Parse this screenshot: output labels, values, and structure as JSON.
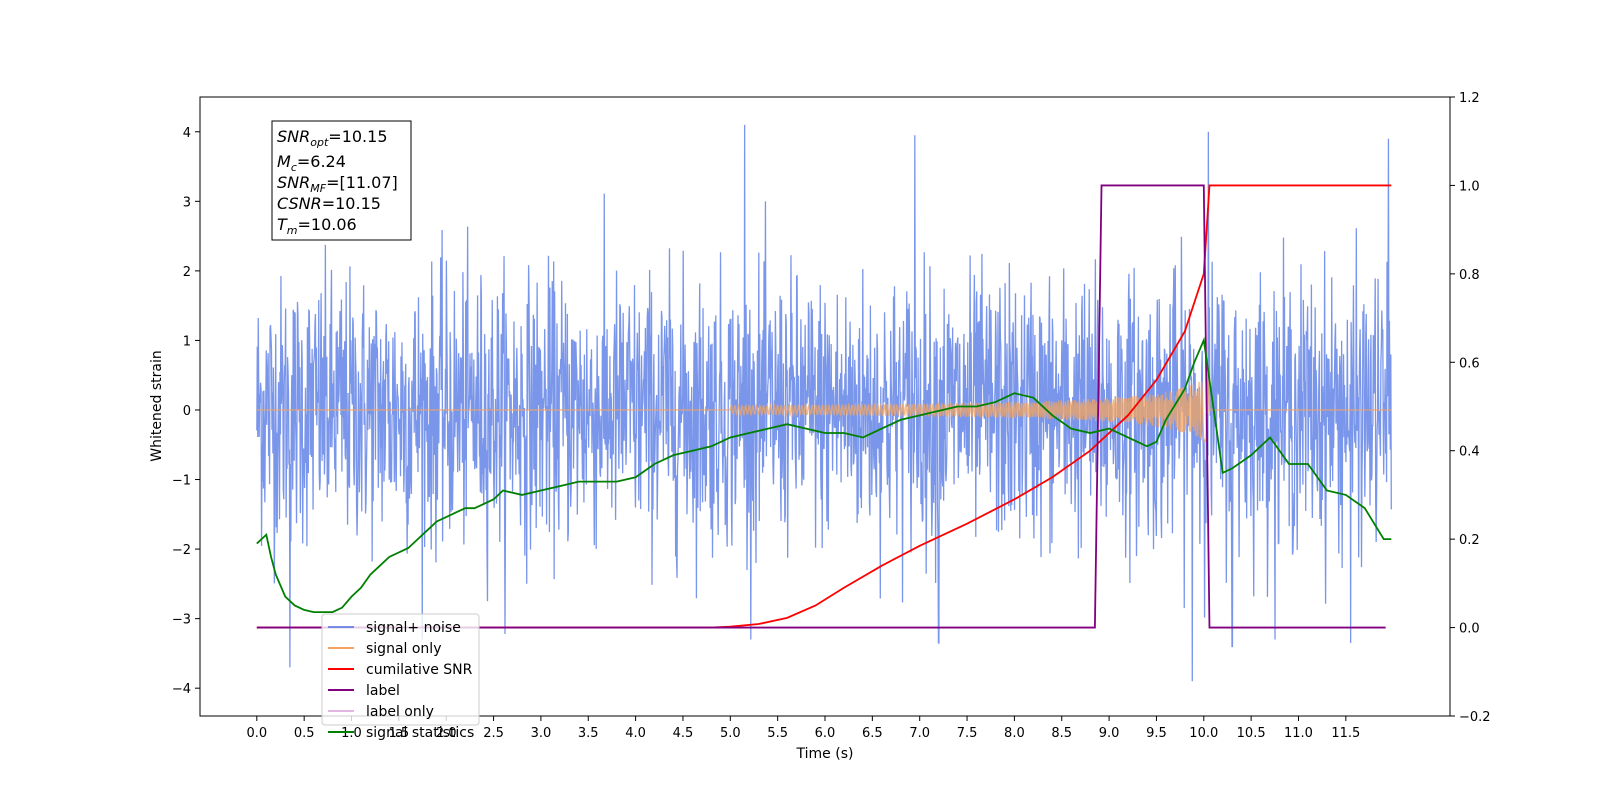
{
  "chart_data": {
    "type": "line",
    "xlabel": "Time (s)",
    "ylabel": "Whitened strain",
    "xlim": [
      -0.6,
      12.6
    ],
    "ylim": [
      -4.4,
      4.5
    ],
    "ylim_right": [
      -0.2,
      1.2
    ],
    "x_ticks": [
      "0.0",
      "0.5",
      "1.0",
      "1.5",
      "2.0",
      "2.5",
      "3.0",
      "3.5",
      "4.0",
      "4.5",
      "5.0",
      "5.5",
      "6.0",
      "6.5",
      "7.0",
      "7.5",
      "8.0",
      "8.5",
      "9.0",
      "9.5",
      "10.0",
      "10.5",
      "11.0",
      "11.5"
    ],
    "y_ticks_left": [
      "−4",
      "−3",
      "−2",
      "−1",
      "0",
      "1",
      "2",
      "3",
      "4"
    ],
    "y_ticks_right": [
      "−0.2",
      "0.0",
      "0.2",
      "0.4",
      "0.6",
      "0.8",
      "1.0",
      "1.2"
    ],
    "grid": false,
    "legend_position": "lower-left",
    "info_box": {
      "snr_opt": {
        "sym": "SNR",
        "sub": "opt",
        "value": "=10.15"
      },
      "mc": {
        "sym": "M",
        "sub": "c",
        "value": "=6.24"
      },
      "snr_mf": {
        "sym": "SNR",
        "sub": "MF",
        "value": "=[11.07]"
      },
      "csnr": {
        "sym": "CSNR",
        "value": "=10.15"
      },
      "tm": {
        "sym": "T",
        "sub": "m",
        "value": "=10.06"
      }
    },
    "series": [
      {
        "name": "signal+ noise",
        "axis": "left",
        "color": "#4169e1",
        "noise": true,
        "x_range": [
          0.0,
          11.98
        ],
        "envelope_max_approx": 4.1,
        "envelope_min_approx": -3.9,
        "peaks": [
          [
            5.15,
            4.1
          ],
          [
            10.05,
            4.0
          ],
          [
            11.95,
            3.9
          ],
          [
            6.95,
            3.95
          ],
          [
            9.88,
            -3.9
          ],
          [
            7.2,
            -3.35
          ],
          [
            10.3,
            -3.4
          ],
          [
            0.35,
            -3.7
          ],
          [
            11.55,
            -3.35
          ]
        ]
      },
      {
        "name": "signal only",
        "axis": "left",
        "color": "#f4a460",
        "chirp": true,
        "start": 5.0,
        "end": 10.06,
        "amplitude_at_end": 0.5
      },
      {
        "name": "cumilative SNR",
        "axis": "right",
        "color": "#ff0000",
        "x": [
          0.0,
          4.8,
          5.0,
          5.3,
          5.6,
          5.9,
          6.2,
          6.6,
          7.0,
          7.5,
          8.0,
          8.4,
          8.8,
          9.2,
          9.5,
          9.8,
          10.0,
          10.06,
          11.98
        ],
        "y": [
          0.0,
          0.0,
          0.002,
          0.008,
          0.022,
          0.05,
          0.09,
          0.14,
          0.185,
          0.235,
          0.29,
          0.34,
          0.4,
          0.48,
          0.56,
          0.67,
          0.8,
          1.0,
          1.0
        ]
      },
      {
        "name": "label",
        "axis": "right",
        "color": "#800080",
        "x": [
          0.0,
          8.85,
          8.92,
          10.0,
          10.06,
          11.92
        ],
        "y": [
          0.0,
          0.0,
          1.0,
          1.0,
          0.0,
          0.0
        ]
      },
      {
        "name": "label only",
        "axis": "right",
        "color": "#d8a0d8",
        "hidden": true
      },
      {
        "name": "signal statistics",
        "axis": "right",
        "color": "#008000",
        "x": [
          0.0,
          0.05,
          0.1,
          0.15,
          0.2,
          0.3,
          0.4,
          0.5,
          0.6,
          0.7,
          0.8,
          0.9,
          1.0,
          1.1,
          1.2,
          1.3,
          1.4,
          1.5,
          1.6,
          1.7,
          1.8,
          1.9,
          2.0,
          2.1,
          2.2,
          2.3,
          2.4,
          2.5,
          2.6,
          2.8,
          3.0,
          3.2,
          3.4,
          3.6,
          3.8,
          4.0,
          4.2,
          4.4,
          4.6,
          4.8,
          5.0,
          5.2,
          5.4,
          5.6,
          5.8,
          6.0,
          6.2,
          6.4,
          6.6,
          6.8,
          7.0,
          7.2,
          7.4,
          7.6,
          7.8,
          8.0,
          8.2,
          8.4,
          8.6,
          8.8,
          9.0,
          9.2,
          9.4,
          9.5,
          9.6,
          9.8,
          9.9,
          10.0,
          10.1,
          10.2,
          10.3,
          10.5,
          10.7,
          10.9,
          11.1,
          11.3,
          11.5,
          11.7,
          11.9,
          11.98
        ],
        "y": [
          0.19,
          0.2,
          0.21,
          0.16,
          0.12,
          0.07,
          0.05,
          0.04,
          0.035,
          0.035,
          0.035,
          0.045,
          0.07,
          0.09,
          0.12,
          0.14,
          0.16,
          0.17,
          0.18,
          0.2,
          0.22,
          0.24,
          0.25,
          0.26,
          0.27,
          0.27,
          0.28,
          0.29,
          0.31,
          0.3,
          0.31,
          0.32,
          0.33,
          0.33,
          0.33,
          0.34,
          0.37,
          0.39,
          0.4,
          0.41,
          0.43,
          0.44,
          0.45,
          0.46,
          0.45,
          0.44,
          0.44,
          0.43,
          0.45,
          0.47,
          0.48,
          0.49,
          0.5,
          0.5,
          0.51,
          0.53,
          0.52,
          0.48,
          0.45,
          0.44,
          0.45,
          0.43,
          0.41,
          0.42,
          0.47,
          0.54,
          0.6,
          0.65,
          0.5,
          0.35,
          0.36,
          0.39,
          0.43,
          0.37,
          0.37,
          0.31,
          0.3,
          0.27,
          0.2,
          0.2
        ]
      }
    ]
  }
}
